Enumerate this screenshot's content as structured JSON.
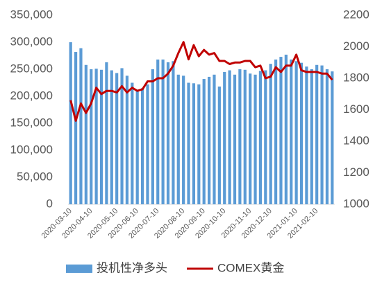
{
  "chart_data": {
    "type": "bar-line",
    "categories": [
      "2020-03-10",
      null,
      null,
      null,
      "2020-04-10",
      null,
      null,
      null,
      null,
      "2020-05-10",
      null,
      null,
      null,
      "2020-06-10",
      null,
      null,
      null,
      "2020-07-10",
      null,
      null,
      null,
      null,
      "2020-08-10",
      null,
      null,
      null,
      "2020-09-10",
      null,
      null,
      null,
      "2020-10-10",
      null,
      null,
      null,
      null,
      "2020-11-10",
      null,
      null,
      null,
      "2020-12-10",
      null,
      null,
      null,
      null,
      "2021-01-10",
      null,
      null,
      null,
      "2021-02-10",
      null,
      null,
      null
    ],
    "series": [
      {
        "name": "投机性净多头",
        "color": "#5b9bd5",
        "kind": "bar",
        "axis": "y",
        "values": [
          300000,
          282000,
          289000,
          258000,
          250000,
          251000,
          249000,
          263000,
          248000,
          243000,
          252000,
          238000,
          225000,
          210000,
          215000,
          222000,
          250000,
          268000,
          268000,
          263000,
          265000,
          240000,
          238000,
          225000,
          224000,
          222000,
          232000,
          236000,
          240000,
          218000,
          245000,
          248000,
          240000,
          250000,
          249000,
          242000,
          240000,
          247000,
          248000,
          260000,
          268000,
          273000,
          277000,
          268000,
          265000,
          262000,
          255000,
          250000,
          258000,
          257000,
          250000,
          246000
        ]
      },
      {
        "name": "COMEX黄金",
        "color": "#c00000",
        "kind": "line",
        "axis": "y2",
        "values": [
          1660,
          1530,
          1640,
          1580,
          1640,
          1740,
          1700,
          1720,
          1720,
          1710,
          1750,
          1710,
          1740,
          1720,
          1730,
          1780,
          1780,
          1800,
          1800,
          1830,
          1880,
          1960,
          2030,
          1920,
          2010,
          1940,
          1980,
          1950,
          1960,
          1910,
          1910,
          1890,
          1900,
          1900,
          1910,
          1910,
          1870,
          1880,
          1800,
          1810,
          1870,
          1840,
          1880,
          1880,
          1950,
          1850,
          1840,
          1840,
          1840,
          1830,
          1830,
          1790
        ]
      }
    ],
    "ylim": [
      0,
      350000
    ],
    "yticks": [
      {
        "value": 0,
        "label": "0"
      },
      {
        "value": 50000,
        "label": "50,000"
      },
      {
        "value": 100000,
        "label": "100,000"
      },
      {
        "value": 150000,
        "label": "150,000"
      },
      {
        "value": 200000,
        "label": "200,000"
      },
      {
        "value": 250000,
        "label": "250,000"
      },
      {
        "value": 300000,
        "label": "300,000"
      },
      {
        "value": 350000,
        "label": "350,000"
      }
    ],
    "y2lim": [
      1000,
      2200
    ],
    "y2ticks": [
      1000,
      1200,
      1400,
      1600,
      1800,
      2000,
      2200
    ],
    "grid": false,
    "legend": "bottom"
  }
}
